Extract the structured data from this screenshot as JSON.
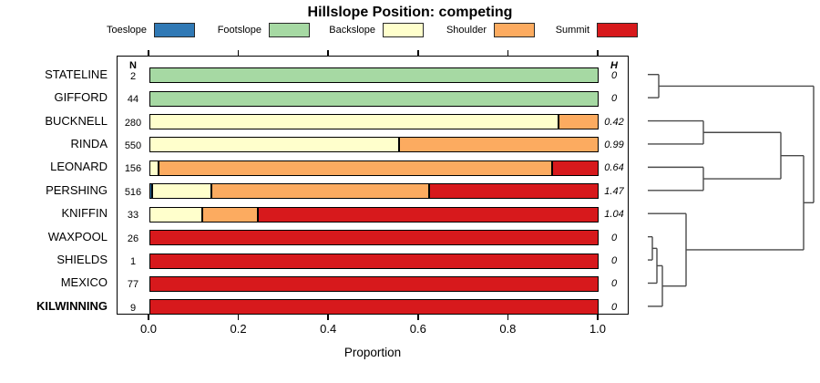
{
  "chart_data": {
    "type": "bar",
    "stacked": true,
    "orientation": "horizontal",
    "title": "Hillslope Position: competing",
    "xlabel": "Proportion",
    "xlim": [
      0,
      1
    ],
    "xticks": [
      "0.0",
      "0.2",
      "0.4",
      "0.6",
      "0.8",
      "1.0"
    ],
    "grid": false,
    "legend_position": "top",
    "col_headers": {
      "n": "N",
      "h": "H"
    },
    "legend": [
      {
        "label": "Toeslope",
        "color": "#3079b5"
      },
      {
        "label": "Footslope",
        "color": "#a6d9a3"
      },
      {
        "label": "Backslope",
        "color": "#ffffcc"
      },
      {
        "label": "Shoulder",
        "color": "#fcab60"
      },
      {
        "label": "Summit",
        "color": "#d7191c"
      }
    ],
    "rows": [
      {
        "name": "STATELINE",
        "n": "2",
        "h": "0",
        "bold": false,
        "segments": [
          {
            "category": "Footslope",
            "value": 1.0
          }
        ]
      },
      {
        "name": "GIFFORD",
        "n": "44",
        "h": "0",
        "bold": false,
        "segments": [
          {
            "category": "Footslope",
            "value": 1.0
          }
        ]
      },
      {
        "name": "BUCKNELL",
        "n": "280",
        "h": "0.42",
        "bold": false,
        "segments": [
          {
            "category": "Backslope",
            "value": 0.91
          },
          {
            "category": "Shoulder",
            "value": 0.09
          }
        ]
      },
      {
        "name": "RINDA",
        "n": "550",
        "h": "0.99",
        "bold": false,
        "segments": [
          {
            "category": "Backslope",
            "value": 0.555
          },
          {
            "category": "Shoulder",
            "value": 0.445
          }
        ]
      },
      {
        "name": "LEONARD",
        "n": "156",
        "h": "0.64",
        "bold": false,
        "segments": [
          {
            "category": "Backslope",
            "value": 0.02
          },
          {
            "category": "Shoulder",
            "value": 0.877
          },
          {
            "category": "Summit",
            "value": 0.103
          }
        ]
      },
      {
        "name": "PERSHING",
        "n": "516",
        "h": "1.47",
        "bold": false,
        "segments": [
          {
            "category": "Toeslope",
            "value": 0.006
          },
          {
            "category": "Backslope",
            "value": 0.132
          },
          {
            "category": "Shoulder",
            "value": 0.485
          },
          {
            "category": "Summit",
            "value": 0.377
          }
        ]
      },
      {
        "name": "KNIFFIN",
        "n": "33",
        "h": "1.04",
        "bold": false,
        "segments": [
          {
            "category": "Backslope",
            "value": 0.118
          },
          {
            "category": "Shoulder",
            "value": 0.123
          },
          {
            "category": "Summit",
            "value": 0.759
          }
        ]
      },
      {
        "name": "WAXPOOL",
        "n": "26",
        "h": "0",
        "bold": false,
        "segments": [
          {
            "category": "Summit",
            "value": 1.0
          }
        ]
      },
      {
        "name": "SHIELDS",
        "n": "1",
        "h": "0",
        "bold": false,
        "segments": [
          {
            "category": "Summit",
            "value": 1.0
          }
        ]
      },
      {
        "name": "MEXICO",
        "n": "77",
        "h": "0",
        "bold": false,
        "segments": [
          {
            "category": "Summit",
            "value": 1.0
          }
        ]
      },
      {
        "name": "KILWINNING",
        "n": "9",
        "h": "0",
        "bold": true,
        "segments": [
          {
            "category": "Summit",
            "value": 1.0
          }
        ]
      }
    ],
    "dendrogram": {
      "h": 182,
      "children": [
        {
          "h": 12,
          "children": [
            {
              "leaf": 0
            },
            {
              "leaf": 1
            }
          ]
        },
        {
          "h": 171,
          "children": [
            {
              "h": 146,
              "children": [
                {
                  "h": 61,
                  "children": [
                    {
                      "leaf": 2
                    },
                    {
                      "leaf": 3
                    }
                  ]
                },
                {
                  "h": 61,
                  "children": [
                    {
                      "leaf": 4
                    },
                    {
                      "leaf": 5
                    }
                  ]
                }
              ]
            },
            {
              "h": 42,
              "children": [
                {
                  "leaf": 6
                },
                {
                  "h": 16,
                  "children": [
                    {
                      "h": 10,
                      "children": [
                        {
                          "h": 5,
                          "children": [
                            {
                              "leaf": 7
                            },
                            {
                              "leaf": 8
                            }
                          ]
                        },
                        {
                          "leaf": 9
                        }
                      ]
                    },
                    {
                      "leaf": 10
                    }
                  ]
                }
              ]
            }
          ]
        }
      ]
    }
  }
}
